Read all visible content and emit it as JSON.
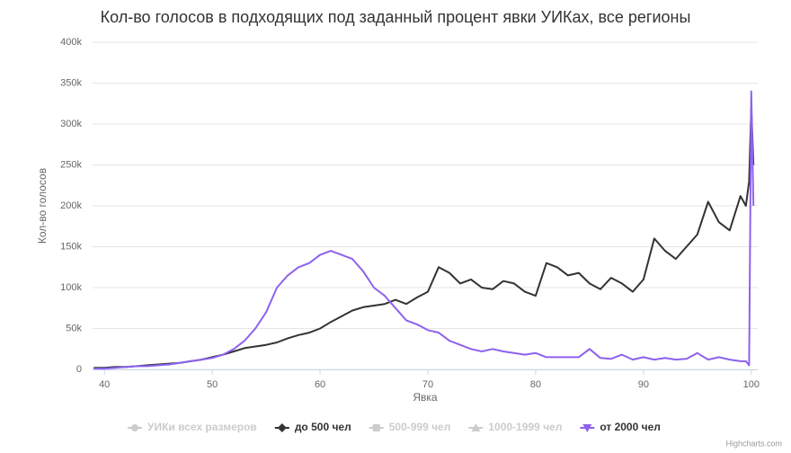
{
  "chart_data": {
    "type": "line",
    "title": "Кол-во голосов в подходящих под заданный процент явки УИКах, все регионы",
    "x_label": "Явка",
    "y_label": "Кол-во голосов",
    "credits": "Highcharts.com",
    "x": [
      39,
      40,
      41,
      42,
      43,
      44,
      45,
      46,
      47,
      48,
      49,
      50,
      51,
      52,
      53,
      54,
      55,
      56,
      57,
      58,
      59,
      60,
      61,
      62,
      63,
      64,
      65,
      66,
      67,
      68,
      69,
      70,
      71,
      72,
      73,
      74,
      75,
      76,
      77,
      78,
      79,
      80,
      81,
      82,
      83,
      84,
      85,
      86,
      87,
      88,
      89,
      90,
      91,
      92,
      93,
      94,
      95,
      96,
      97,
      98,
      99,
      99.5,
      99.8,
      100,
      100.2
    ],
    "series": [
      {
        "name": "УИКи всех размеров",
        "color": "#cccccc",
        "symbol": "circle",
        "visible": false
      },
      {
        "name": "до 500 чел",
        "color": "#333333",
        "symbol": "diamond",
        "visible": true,
        "values": [
          2000,
          2000,
          3000,
          3000,
          4000,
          5000,
          6000,
          7000,
          8000,
          10000,
          12000,
          15000,
          18000,
          22000,
          26000,
          28000,
          30000,
          33000,
          38000,
          42000,
          45000,
          50000,
          58000,
          65000,
          72000,
          76000,
          78000,
          80000,
          85000,
          80000,
          88000,
          95000,
          125000,
          118000,
          105000,
          110000,
          100000,
          98000,
          108000,
          105000,
          95000,
          90000,
          130000,
          125000,
          115000,
          118000,
          105000,
          98000,
          112000,
          105000,
          95000,
          110000,
          160000,
          145000,
          135000,
          150000,
          165000,
          205000,
          180000,
          170000,
          212000,
          200000,
          230000,
          320000,
          250000
        ]
      },
      {
        "name": "500-999 чел",
        "color": "#cccccc",
        "symbol": "square",
        "visible": false
      },
      {
        "name": "1000-1999 чел",
        "color": "#cccccc",
        "symbol": "triangle",
        "visible": false
      },
      {
        "name": "от 2000 чел",
        "color": "#8c62ee",
        "symbol": "triangle-down",
        "visible": true,
        "values": [
          1000,
          1000,
          2000,
          3000,
          4000,
          4000,
          5000,
          6000,
          8000,
          10000,
          12000,
          14000,
          18000,
          25000,
          35000,
          50000,
          70000,
          100000,
          115000,
          125000,
          130000,
          140000,
          145000,
          140000,
          135000,
          120000,
          100000,
          90000,
          75000,
          60000,
          55000,
          48000,
          45000,
          35000,
          30000,
          25000,
          22000,
          25000,
          22000,
          20000,
          18000,
          20000,
          15000,
          15000,
          15000,
          15000,
          25000,
          14000,
          13000,
          18000,
          12000,
          15000,
          12000,
          14000,
          12000,
          13000,
          20000,
          12000,
          15000,
          12000,
          10000,
          10000,
          5000,
          340000,
          200000
        ]
      }
    ],
    "xlim": [
      38.9,
      100.6
    ],
    "xticks": [
      40,
      50,
      60,
      70,
      80,
      90,
      100
    ],
    "ylim": [
      0,
      400000
    ],
    "yticks": [
      0,
      {
        "value": 50000,
        "label": "50k"
      },
      {
        "value": 100000,
        "label": "100k"
      },
      {
        "value": 150000,
        "label": "150k"
      },
      {
        "value": 200000,
        "label": "200k"
      },
      {
        "value": 250000,
        "label": "250k"
      },
      {
        "value": 300000,
        "label": "300k"
      },
      {
        "value": 350000,
        "label": "350k"
      },
      {
        "value": 400000,
        "label": "400k"
      }
    ],
    "grid": true
  }
}
